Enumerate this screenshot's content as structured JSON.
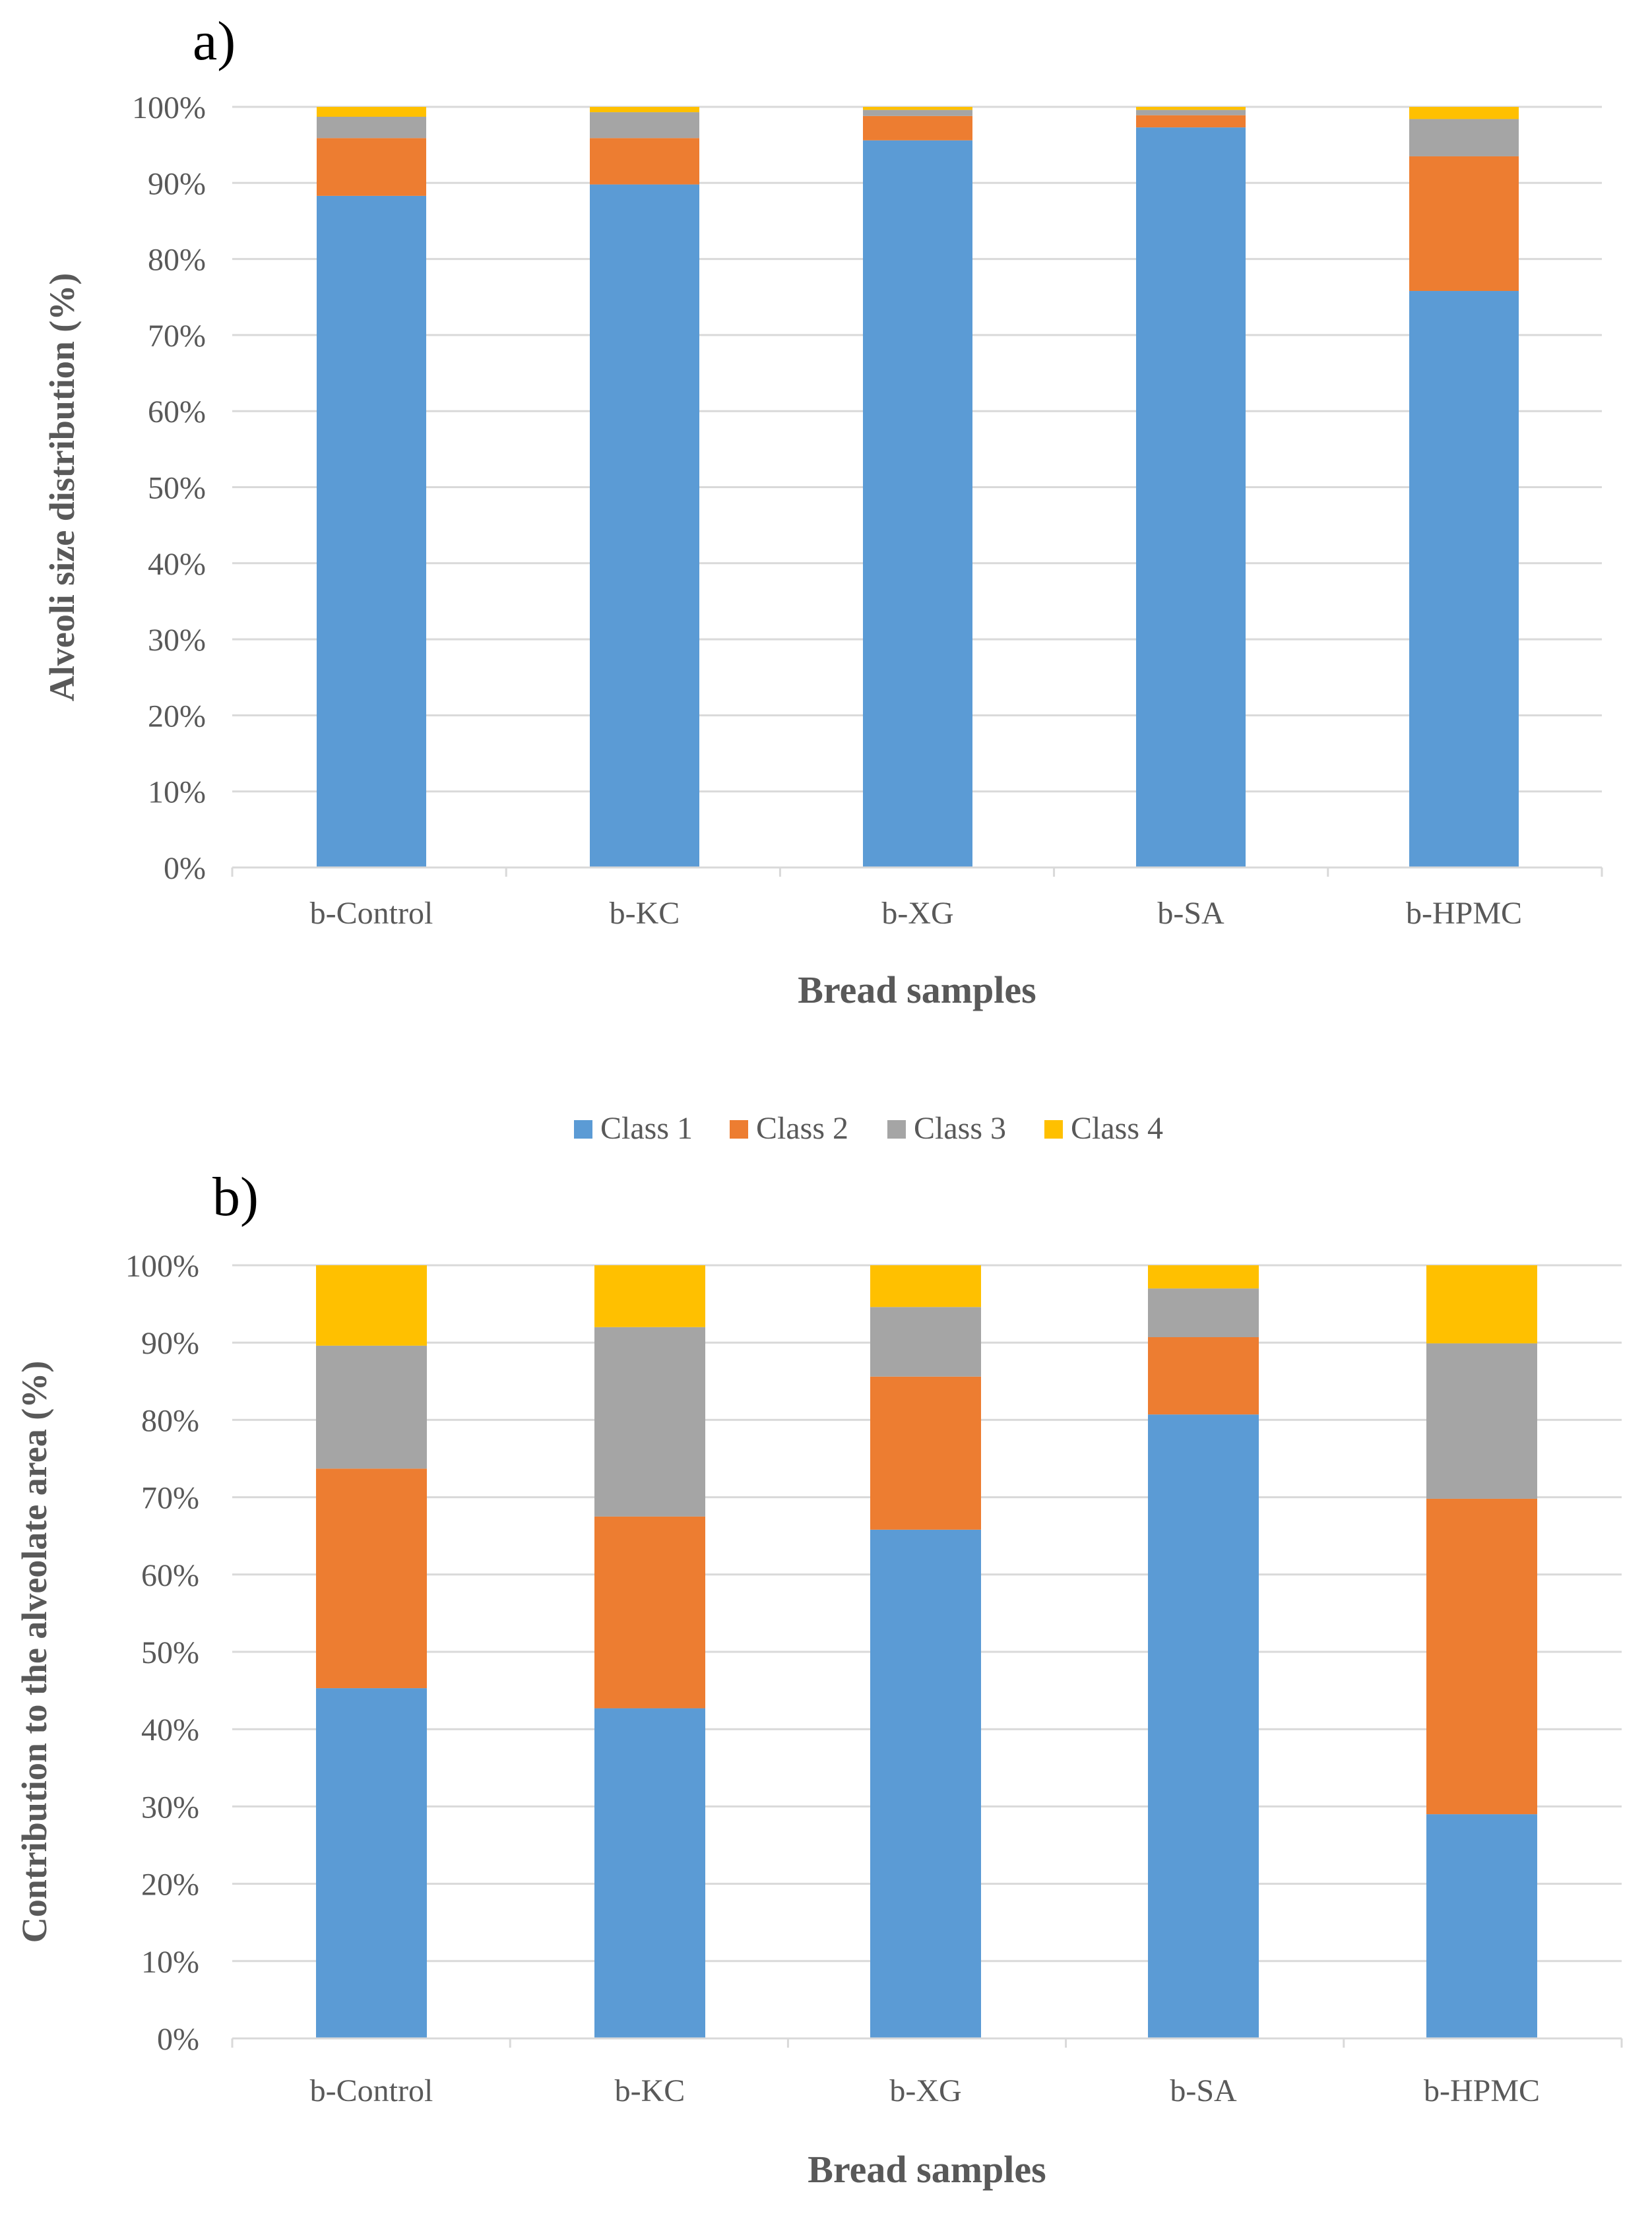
{
  "legend": {
    "entries": [
      {
        "label": "Class 1",
        "color": "#5B9BD5"
      },
      {
        "label": "Class 2",
        "color": "#ED7D31"
      },
      {
        "label": "Class 3",
        "color": "#A5A5A5"
      },
      {
        "label": "Class 4",
        "color": "#FFC000"
      }
    ]
  },
  "colors": {
    "grid": "#D9D9D9",
    "axis": "#D9D9D9",
    "text": "#595959"
  },
  "chart_data": [
    {
      "type": "bar",
      "stacked": true,
      "panel_label": "a)",
      "title": "",
      "xlabel": "Bread samples",
      "ylabel": "Alveoli size distribution  (%)",
      "ylim": [
        0,
        100
      ],
      "ytick_labels": [
        "0%",
        "10%",
        "20%",
        "30%",
        "40%",
        "50%",
        "60%",
        "70%",
        "80%",
        "90%",
        "100%"
      ],
      "categories": [
        "b-Control",
        "b-KC",
        "b-XG",
        "b-SA",
        "b-HPMC"
      ],
      "series": [
        {
          "name": "Class 1",
          "values": [
            88.3,
            89.8,
            95.6,
            97.3,
            75.8
          ]
        },
        {
          "name": "Class 2",
          "values": [
            7.6,
            6.1,
            3.2,
            1.6,
            17.7
          ]
        },
        {
          "name": "Class 3",
          "values": [
            2.8,
            3.4,
            0.8,
            0.7,
            4.9
          ]
        },
        {
          "name": "Class 4",
          "values": [
            1.3,
            0.7,
            0.4,
            0.4,
            1.6
          ]
        }
      ],
      "legend_position": "bottom"
    },
    {
      "type": "bar",
      "stacked": true,
      "panel_label": "b)",
      "title": "",
      "xlabel": "Bread samples",
      "ylabel": "Contribution  to the alveolate area (%)",
      "ylim": [
        0,
        100
      ],
      "ytick_labels": [
        "0%",
        "10%",
        "20%",
        "30%",
        "40%",
        "50%",
        "60%",
        "70%",
        "80%",
        "90%",
        "100%"
      ],
      "categories": [
        "b-Control",
        "b-KC",
        "b-XG",
        "b-SA",
        "b-HPMC"
      ],
      "series": [
        {
          "name": "Class 1",
          "values": [
            45.3,
            42.7,
            65.8,
            80.7,
            29.0
          ]
        },
        {
          "name": "Class 2",
          "values": [
            28.4,
            24.8,
            19.8,
            10.0,
            40.8
          ]
        },
        {
          "name": "Class 3",
          "values": [
            15.9,
            24.5,
            9.0,
            6.3,
            20.1
          ]
        },
        {
          "name": "Class 4",
          "values": [
            10.4,
            8.0,
            5.4,
            3.0,
            10.1
          ]
        }
      ]
    }
  ]
}
